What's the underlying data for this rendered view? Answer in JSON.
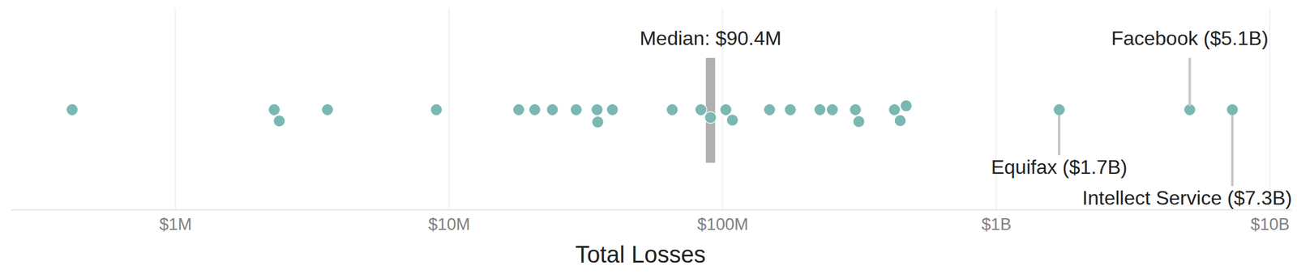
{
  "chart_data": {
    "type": "scatter",
    "xlabel": "Total Losses",
    "x": [
      420000,
      2400000,
      2300000,
      3600000,
      9000000,
      18000000,
      20600000,
      23900000,
      29200000,
      34800000,
      35000000,
      39600000,
      65500000,
      83400000,
      90400000,
      102800000,
      108700000,
      148600000,
      177000000,
      227000000,
      252000000,
      306000000,
      315000000,
      425000000,
      446000000,
      469000000,
      1700000000,
      5100000000,
      7300000000
    ],
    "color": "#7ab8b3",
    "log": "x",
    "grid": true,
    "xlim": [
      250000,
      12000000000
    ],
    "xticks": [
      {
        "value": 1000000,
        "label": "$1M"
      },
      {
        "value": 10000000,
        "label": "$10M"
      },
      {
        "value": 100000000,
        "label": "$100M"
      },
      {
        "value": 1000000000,
        "label": "$1B"
      },
      {
        "value": 10000000000,
        "label": "$10B"
      }
    ],
    "median": {
      "value": 90400000,
      "label": "Median: $90.4M"
    },
    "annotations": [
      {
        "text": "Equifax ($1.7B)",
        "x": 1700000000
      },
      {
        "text": "Facebook ($5.1B)",
        "x": 5100000000
      },
      {
        "text": "Intellect Service ($7.3B)",
        "x": 7300000000
      }
    ]
  }
}
